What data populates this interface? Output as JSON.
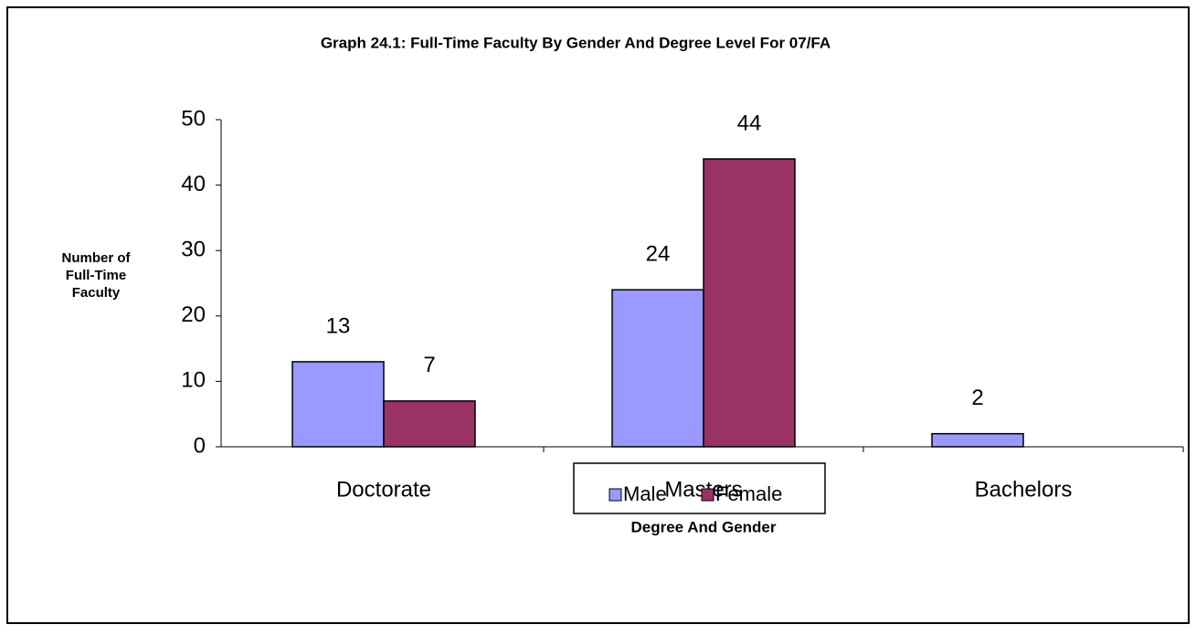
{
  "chart_data": {
    "type": "bar",
    "title": "Graph 24.1: Full-Time Faculty By Gender And Degree Level For 07/FA",
    "y_label": [
      "Number of",
      "Full-Time",
      "Faculty"
    ],
    "x_label": "Degree And Gender",
    "categories": [
      "Doctorate",
      "Masters",
      "Bachelors"
    ],
    "series": [
      {
        "name": "Male",
        "color": "#9999ff",
        "values": [
          13,
          24,
          2
        ]
      },
      {
        "name": "Female",
        "color": "#993366",
        "values": [
          7,
          44,
          null
        ]
      }
    ],
    "ylim": [
      0,
      50
    ],
    "yticks": [
      0,
      10,
      20,
      30,
      40,
      50
    ],
    "grid": false,
    "legend": "bottom"
  }
}
